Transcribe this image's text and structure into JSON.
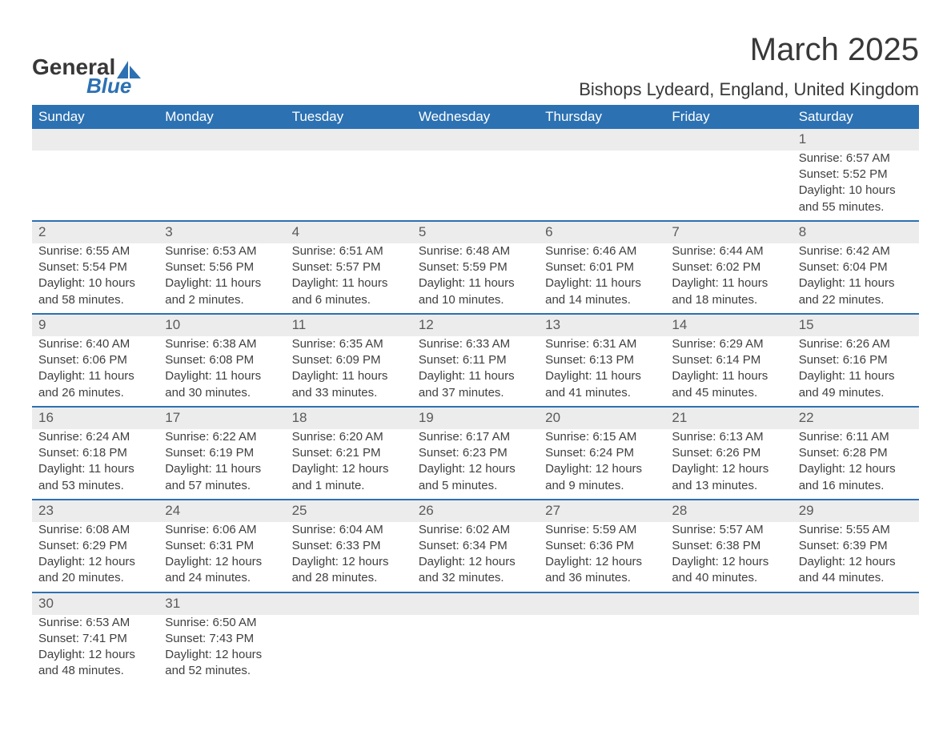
{
  "logo": {
    "text_top": "General",
    "text_bottom": "Blue",
    "accent_color": "#2c71b2",
    "text_color": "#383838"
  },
  "title": "March 2025",
  "location": "Bishops Lydeard, England, United Kingdom",
  "colors": {
    "header_bg": "#2c71b2",
    "header_text": "#ffffff",
    "daynum_bg": "#ececec",
    "daynum_border": "#2c71b2",
    "body_text": "#404040",
    "background": "#ffffff"
  },
  "typography": {
    "month_title_fontsize": 40,
    "location_fontsize": 22,
    "weekday_fontsize": 17,
    "daynum_fontsize": 17,
    "detail_fontsize": 15
  },
  "weekdays": [
    "Sunday",
    "Monday",
    "Tuesday",
    "Wednesday",
    "Thursday",
    "Friday",
    "Saturday"
  ],
  "weeks": [
    [
      null,
      null,
      null,
      null,
      null,
      null,
      {
        "n": "1",
        "sunrise": "Sunrise: 6:57 AM",
        "sunset": "Sunset: 5:52 PM",
        "day1": "Daylight: 10 hours",
        "day2": "and 55 minutes."
      }
    ],
    [
      {
        "n": "2",
        "sunrise": "Sunrise: 6:55 AM",
        "sunset": "Sunset: 5:54 PM",
        "day1": "Daylight: 10 hours",
        "day2": "and 58 minutes."
      },
      {
        "n": "3",
        "sunrise": "Sunrise: 6:53 AM",
        "sunset": "Sunset: 5:56 PM",
        "day1": "Daylight: 11 hours",
        "day2": "and 2 minutes."
      },
      {
        "n": "4",
        "sunrise": "Sunrise: 6:51 AM",
        "sunset": "Sunset: 5:57 PM",
        "day1": "Daylight: 11 hours",
        "day2": "and 6 minutes."
      },
      {
        "n": "5",
        "sunrise": "Sunrise: 6:48 AM",
        "sunset": "Sunset: 5:59 PM",
        "day1": "Daylight: 11 hours",
        "day2": "and 10 minutes."
      },
      {
        "n": "6",
        "sunrise": "Sunrise: 6:46 AM",
        "sunset": "Sunset: 6:01 PM",
        "day1": "Daylight: 11 hours",
        "day2": "and 14 minutes."
      },
      {
        "n": "7",
        "sunrise": "Sunrise: 6:44 AM",
        "sunset": "Sunset: 6:02 PM",
        "day1": "Daylight: 11 hours",
        "day2": "and 18 minutes."
      },
      {
        "n": "8",
        "sunrise": "Sunrise: 6:42 AM",
        "sunset": "Sunset: 6:04 PM",
        "day1": "Daylight: 11 hours",
        "day2": "and 22 minutes."
      }
    ],
    [
      {
        "n": "9",
        "sunrise": "Sunrise: 6:40 AM",
        "sunset": "Sunset: 6:06 PM",
        "day1": "Daylight: 11 hours",
        "day2": "and 26 minutes."
      },
      {
        "n": "10",
        "sunrise": "Sunrise: 6:38 AM",
        "sunset": "Sunset: 6:08 PM",
        "day1": "Daylight: 11 hours",
        "day2": "and 30 minutes."
      },
      {
        "n": "11",
        "sunrise": "Sunrise: 6:35 AM",
        "sunset": "Sunset: 6:09 PM",
        "day1": "Daylight: 11 hours",
        "day2": "and 33 minutes."
      },
      {
        "n": "12",
        "sunrise": "Sunrise: 6:33 AM",
        "sunset": "Sunset: 6:11 PM",
        "day1": "Daylight: 11 hours",
        "day2": "and 37 minutes."
      },
      {
        "n": "13",
        "sunrise": "Sunrise: 6:31 AM",
        "sunset": "Sunset: 6:13 PM",
        "day1": "Daylight: 11 hours",
        "day2": "and 41 minutes."
      },
      {
        "n": "14",
        "sunrise": "Sunrise: 6:29 AM",
        "sunset": "Sunset: 6:14 PM",
        "day1": "Daylight: 11 hours",
        "day2": "and 45 minutes."
      },
      {
        "n": "15",
        "sunrise": "Sunrise: 6:26 AM",
        "sunset": "Sunset: 6:16 PM",
        "day1": "Daylight: 11 hours",
        "day2": "and 49 minutes."
      }
    ],
    [
      {
        "n": "16",
        "sunrise": "Sunrise: 6:24 AM",
        "sunset": "Sunset: 6:18 PM",
        "day1": "Daylight: 11 hours",
        "day2": "and 53 minutes."
      },
      {
        "n": "17",
        "sunrise": "Sunrise: 6:22 AM",
        "sunset": "Sunset: 6:19 PM",
        "day1": "Daylight: 11 hours",
        "day2": "and 57 minutes."
      },
      {
        "n": "18",
        "sunrise": "Sunrise: 6:20 AM",
        "sunset": "Sunset: 6:21 PM",
        "day1": "Daylight: 12 hours",
        "day2": "and 1 minute."
      },
      {
        "n": "19",
        "sunrise": "Sunrise: 6:17 AM",
        "sunset": "Sunset: 6:23 PM",
        "day1": "Daylight: 12 hours",
        "day2": "and 5 minutes."
      },
      {
        "n": "20",
        "sunrise": "Sunrise: 6:15 AM",
        "sunset": "Sunset: 6:24 PM",
        "day1": "Daylight: 12 hours",
        "day2": "and 9 minutes."
      },
      {
        "n": "21",
        "sunrise": "Sunrise: 6:13 AM",
        "sunset": "Sunset: 6:26 PM",
        "day1": "Daylight: 12 hours",
        "day2": "and 13 minutes."
      },
      {
        "n": "22",
        "sunrise": "Sunrise: 6:11 AM",
        "sunset": "Sunset: 6:28 PM",
        "day1": "Daylight: 12 hours",
        "day2": "and 16 minutes."
      }
    ],
    [
      {
        "n": "23",
        "sunrise": "Sunrise: 6:08 AM",
        "sunset": "Sunset: 6:29 PM",
        "day1": "Daylight: 12 hours",
        "day2": "and 20 minutes."
      },
      {
        "n": "24",
        "sunrise": "Sunrise: 6:06 AM",
        "sunset": "Sunset: 6:31 PM",
        "day1": "Daylight: 12 hours",
        "day2": "and 24 minutes."
      },
      {
        "n": "25",
        "sunrise": "Sunrise: 6:04 AM",
        "sunset": "Sunset: 6:33 PM",
        "day1": "Daylight: 12 hours",
        "day2": "and 28 minutes."
      },
      {
        "n": "26",
        "sunrise": "Sunrise: 6:02 AM",
        "sunset": "Sunset: 6:34 PM",
        "day1": "Daylight: 12 hours",
        "day2": "and 32 minutes."
      },
      {
        "n": "27",
        "sunrise": "Sunrise: 5:59 AM",
        "sunset": "Sunset: 6:36 PM",
        "day1": "Daylight: 12 hours",
        "day2": "and 36 minutes."
      },
      {
        "n": "28",
        "sunrise": "Sunrise: 5:57 AM",
        "sunset": "Sunset: 6:38 PM",
        "day1": "Daylight: 12 hours",
        "day2": "and 40 minutes."
      },
      {
        "n": "29",
        "sunrise": "Sunrise: 5:55 AM",
        "sunset": "Sunset: 6:39 PM",
        "day1": "Daylight: 12 hours",
        "day2": "and 44 minutes."
      }
    ],
    [
      {
        "n": "30",
        "sunrise": "Sunrise: 6:53 AM",
        "sunset": "Sunset: 7:41 PM",
        "day1": "Daylight: 12 hours",
        "day2": "and 48 minutes."
      },
      {
        "n": "31",
        "sunrise": "Sunrise: 6:50 AM",
        "sunset": "Sunset: 7:43 PM",
        "day1": "Daylight: 12 hours",
        "day2": "and 52 minutes."
      },
      null,
      null,
      null,
      null,
      null
    ]
  ]
}
